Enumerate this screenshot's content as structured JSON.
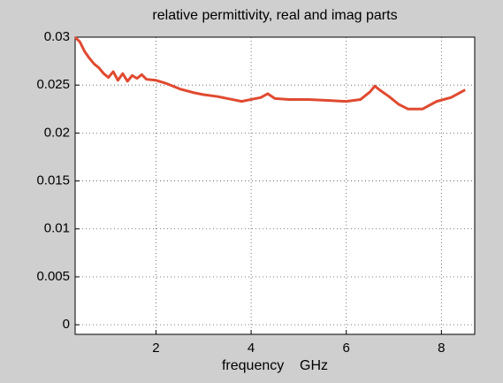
{
  "chart_data": {
    "type": "line",
    "title": "relative permittivity, real and imag parts",
    "x_label": "frequency    GHz",
    "x": [
      0.3,
      0.4,
      0.5,
      0.6,
      0.7,
      0.8,
      0.9,
      1.0,
      1.1,
      1.2,
      1.3,
      1.4,
      1.5,
      1.6,
      1.7,
      1.8,
      2.0,
      2.2,
      2.5,
      2.8,
      3.0,
      3.3,
      3.6,
      3.8,
      4.0,
      4.2,
      4.35,
      4.5,
      4.8,
      5.2,
      5.6,
      6.0,
      6.3,
      6.5,
      6.6,
      6.7,
      6.9,
      7.1,
      7.3,
      7.6,
      7.9,
      8.2,
      8.5
    ],
    "series": [
      {
        "color": "#e04a30",
        "values": [
          0.03,
          0.0295,
          0.0285,
          0.0278,
          0.0272,
          0.0268,
          0.0262,
          0.0258,
          0.0264,
          0.0255,
          0.0262,
          0.0254,
          0.026,
          0.0257,
          0.0261,
          0.0256,
          0.0255,
          0.0252,
          0.0246,
          0.0242,
          0.024,
          0.0238,
          0.0235,
          0.0233,
          0.0235,
          0.0237,
          0.0241,
          0.0236,
          0.0235,
          0.0235,
          0.0234,
          0.0233,
          0.0235,
          0.0243,
          0.0249,
          0.0245,
          0.0238,
          0.023,
          0.0225,
          0.0225,
          0.0233,
          0.0237,
          0.0245
        ]
      }
    ],
    "xlim": [
      0.3,
      8.7
    ],
    "ylim": [
      -0.001,
      0.03
    ],
    "xticks": [
      2,
      4,
      6,
      8
    ],
    "yticks": [
      0,
      0.005,
      0.01,
      0.015,
      0.02,
      0.025,
      0.03
    ],
    "grid": true
  }
}
